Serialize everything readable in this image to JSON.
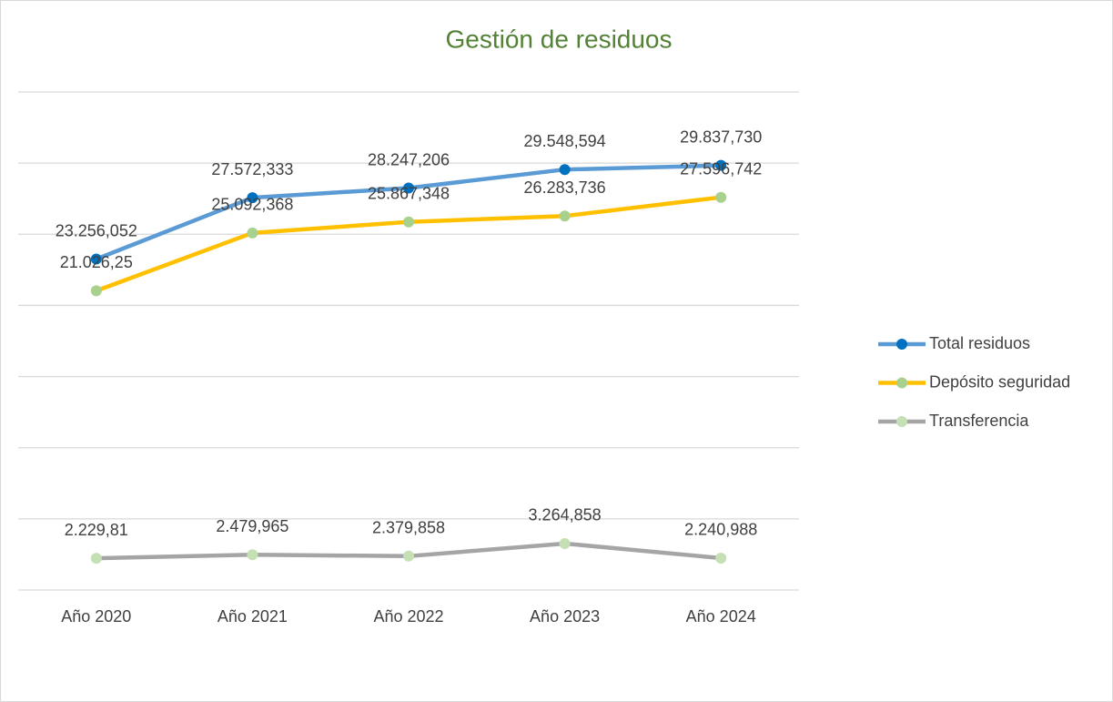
{
  "chart_data": {
    "type": "line",
    "title": "Gestión de residuos",
    "categories": [
      "Año 2020",
      "Año 2021",
      "Año 2022",
      "Año 2023",
      "Año 2024"
    ],
    "series": [
      {
        "name": "Total residuos",
        "color": "#5b9bd5",
        "marker_color": "#0070c0",
        "values": [
          23256.052,
          27572.333,
          28247.206,
          29548.594,
          29837.73
        ],
        "value_labels": [
          "23.256,052",
          "27.572,333",
          "28.247,206",
          "29.548,594",
          "29.837,730"
        ]
      },
      {
        "name": "Depósito seguridad",
        "color": "#ffc000",
        "marker_color": "#a9d18e",
        "values": [
          21026.25,
          25092.368,
          25867.348,
          26283.736,
          27596.742
        ],
        "value_labels": [
          "21.026,25",
          "25.092,368",
          "25.867,348",
          "26.283,736",
          "27.596,742"
        ]
      },
      {
        "name": "Transferencia",
        "color": "#a5a5a5",
        "marker_color": "#c5e0b4",
        "values": [
          2229.81,
          2479.965,
          2379.858,
          3264.858,
          2240.988
        ],
        "value_labels": [
          "2.229,81",
          "2.479,965",
          "2.379,858",
          "3.264,858",
          "2.240,988"
        ]
      }
    ],
    "ylim": [
      0,
      35000
    ],
    "yticks": [
      0,
      5000,
      10000,
      15000,
      20000,
      25000,
      30000,
      35000
    ],
    "grid": true,
    "legend": "right"
  }
}
